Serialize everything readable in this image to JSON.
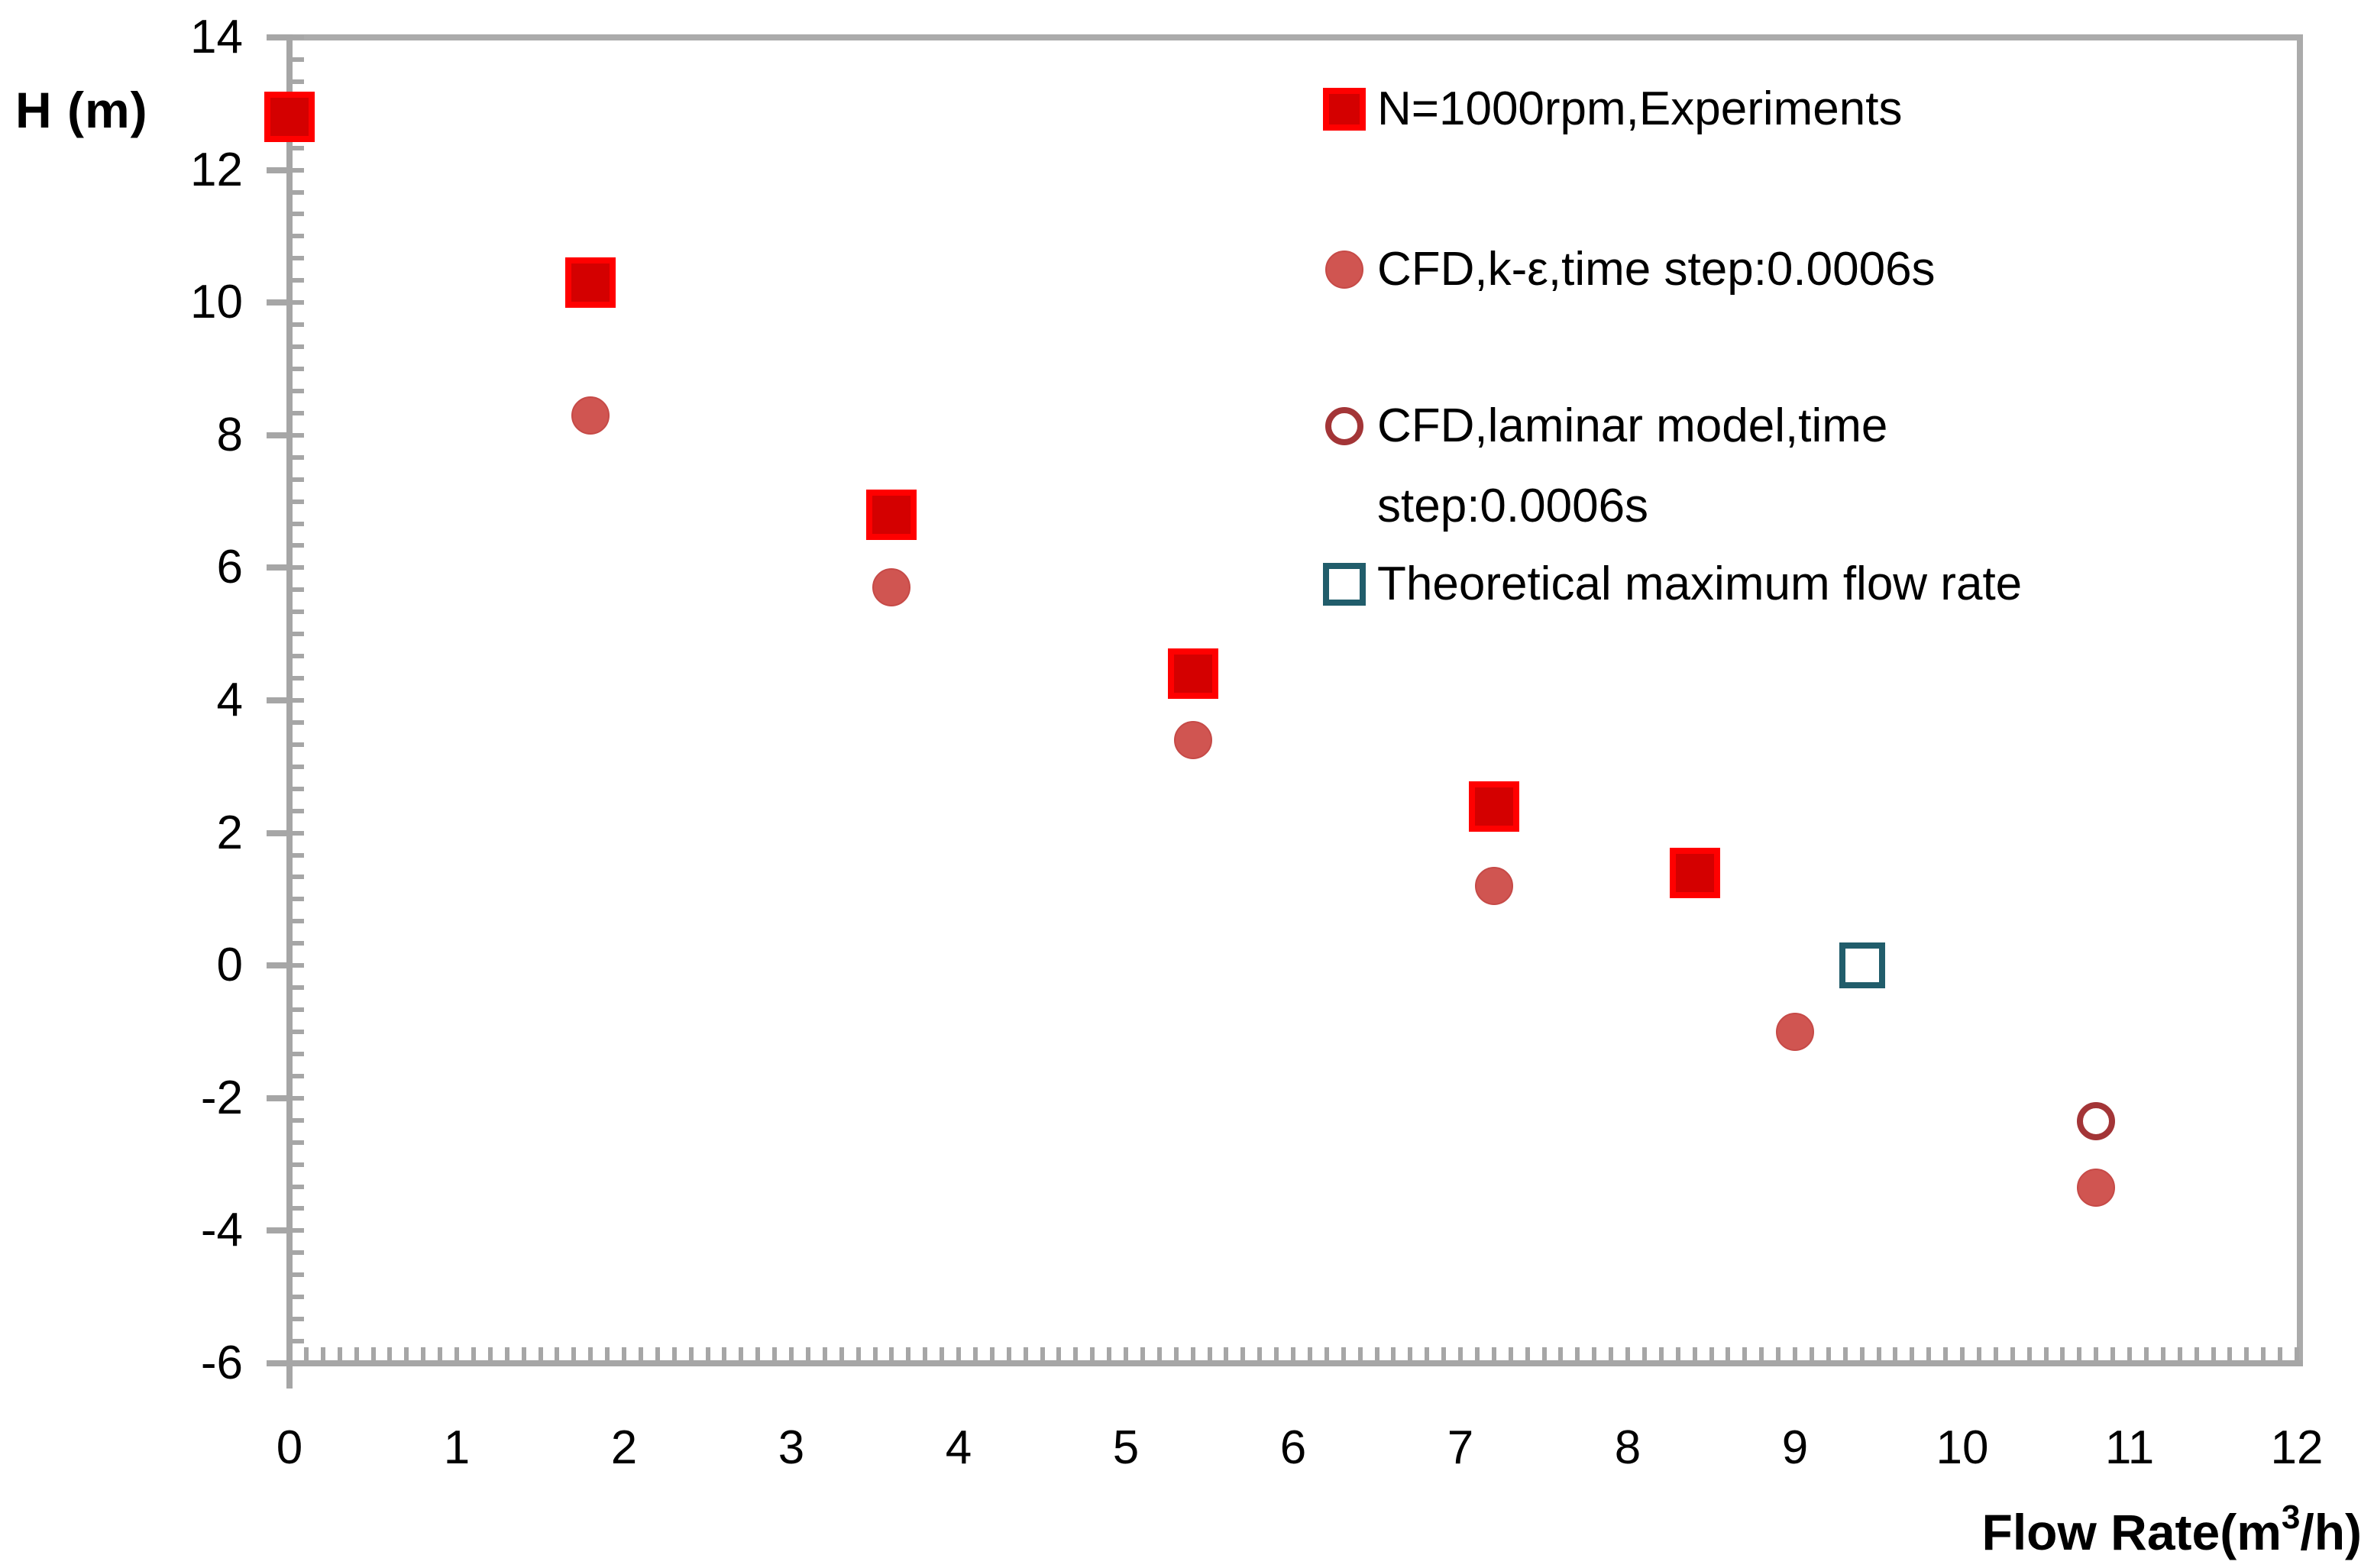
{
  "chart_data": {
    "type": "scatter",
    "title": "",
    "xlabel": "Flow Rate(m³/h)",
    "xlabel_parts": {
      "prefix": "Flow Rate(m",
      "sup": "3",
      "suffix": "/h)"
    },
    "ylabel": "H (m)",
    "xlim": [
      0,
      12
    ],
    "ylim": [
      -6,
      14
    ],
    "x_major_ticks": [
      "0",
      "1",
      "2",
      "3",
      "4",
      "5",
      "6",
      "7",
      "8",
      "9",
      "10",
      "11",
      "12"
    ],
    "y_major_ticks": [
      "14",
      "12",
      "10",
      "8",
      "6",
      "4",
      "2",
      "0",
      "-2",
      "-4",
      "-6"
    ],
    "x_minor_per_unit": 10,
    "y_minor_per_major": 6,
    "grid": false,
    "legend_position": "inside-upper-right",
    "axis_color": "#a6a6a6",
    "plot_border_color": "#ababab",
    "series": [
      {
        "key": "experiments",
        "label": "N=1000rpm,Experiments",
        "label_lines": [
          "N=1000rpm,Experiments"
        ],
        "marker": "filled-square",
        "fill": "#d40000",
        "stroke": "#ff0000",
        "points": [
          [
            0,
            12.8
          ],
          [
            1.8,
            10.3
          ],
          [
            3.6,
            6.8
          ],
          [
            5.4,
            4.4
          ],
          [
            7.2,
            2.4
          ],
          [
            8.4,
            1.4
          ]
        ]
      },
      {
        "key": "cfd-k-epsilon",
        "label": "CFD,k-ε,time step:0.0006s",
        "label_lines": [
          "CFD,k-ε,time step:0.0006s"
        ],
        "marker": "filled-circle",
        "fill": "#d05551",
        "stroke": "#c64a47",
        "points": [
          [
            1.8,
            8.3
          ],
          [
            3.6,
            5.7
          ],
          [
            5.4,
            3.4
          ],
          [
            7.2,
            1.2
          ],
          [
            9.0,
            -1.0
          ],
          [
            10.8,
            -3.35
          ]
        ]
      },
      {
        "key": "cfd-laminar",
        "label": "CFD,laminar model,time step:0.0006s",
        "label_lines": [
          "CFD,laminar model,time",
          "step:0.0006s"
        ],
        "marker": "open-circle",
        "fill": "none",
        "stroke": "#a33537",
        "points": [
          [
            10.8,
            -2.35
          ]
        ]
      },
      {
        "key": "theoretical-max",
        "label": "Theoretical maximum flow rate",
        "label_lines": [
          "Theoretical maximum flow rate"
        ],
        "marker": "open-square",
        "fill": "none",
        "stroke": "#215d6b",
        "points": [
          [
            9.4,
            0
          ]
        ]
      }
    ]
  }
}
